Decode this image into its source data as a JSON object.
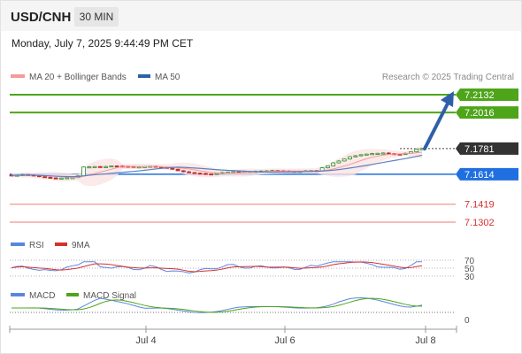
{
  "header": {
    "symbol": "USD/CNH",
    "timeframe": "30 MIN",
    "datetime": "Monday, July 7, 2025 9:44:49 PM CET"
  },
  "legend": {
    "ma20_bb": "MA 20 + Bollinger Bands",
    "ma50": "MA 50",
    "credit": "Research © 2025 Trading Central"
  },
  "colors": {
    "green_level": "#4ea51a",
    "blue_level": "#1f6fe0",
    "red_level": "#f3a6a6",
    "last_price_bg": "#333333",
    "arrow": "#2f5fa8",
    "ma20": "#f49a9a",
    "ma50": "#5b7fc0",
    "rsi": "#5b86e0",
    "nine_ma": "#d63030",
    "macd": "#5b86e0",
    "macd_signal": "#4ea51a"
  },
  "chart_data": [
    {
      "type": "candlestick",
      "title": "USD/CNH",
      "x_ticks": [
        "Jul 4",
        "Jul 6",
        "Jul 8"
      ],
      "levels": [
        {
          "value": "7.2132",
          "kind": "resistance"
        },
        {
          "value": "7.2016",
          "kind": "resistance"
        },
        {
          "value": "7.1781",
          "kind": "last"
        },
        {
          "value": "7.1614",
          "kind": "pivot"
        },
        {
          "value": "7.1419",
          "kind": "support"
        },
        {
          "value": "7.1302",
          "kind": "support"
        }
      ],
      "closes": [
        7.1607,
        7.1608,
        7.1612,
        7.1609,
        7.1605,
        7.1598,
        7.1594,
        7.159,
        7.1588,
        7.1589,
        7.1591,
        7.1592,
        7.1603,
        7.1661,
        7.1662,
        7.1664,
        7.166,
        7.1664,
        7.1668,
        7.1667,
        7.1666,
        7.1665,
        7.166,
        7.1662,
        7.1664,
        7.1666,
        7.1663,
        7.1659,
        7.1653,
        7.1647,
        7.1637,
        7.163,
        7.1625,
        7.1621,
        7.1619,
        7.1616,
        7.1614,
        7.1619,
        7.1625,
        7.1627,
        7.163,
        7.1629,
        7.1631,
        7.1632,
        7.1633,
        7.1635,
        7.1636,
        7.1638,
        7.1637,
        7.1635,
        7.1633,
        7.1631,
        7.1633,
        7.1637,
        7.1638,
        7.1637,
        7.1656,
        7.1668,
        7.1688,
        7.17,
        7.1713,
        7.1728,
        7.1734,
        7.1741,
        7.1745,
        7.1748,
        7.175,
        7.1752,
        7.1748,
        7.1745,
        7.1744,
        7.175,
        7.176,
        7.1778,
        7.1781
      ]
    },
    {
      "type": "line",
      "title": "RSI",
      "series": [
        {
          "name": "RSI"
        },
        {
          "name": "9MA"
        }
      ],
      "y_ticks": [
        "70",
        "50",
        "30"
      ]
    },
    {
      "type": "line",
      "title": "MACD",
      "series": [
        {
          "name": "MACD"
        },
        {
          "name": "MACD Signal"
        }
      ],
      "y_ticks": [
        "0"
      ]
    }
  ]
}
